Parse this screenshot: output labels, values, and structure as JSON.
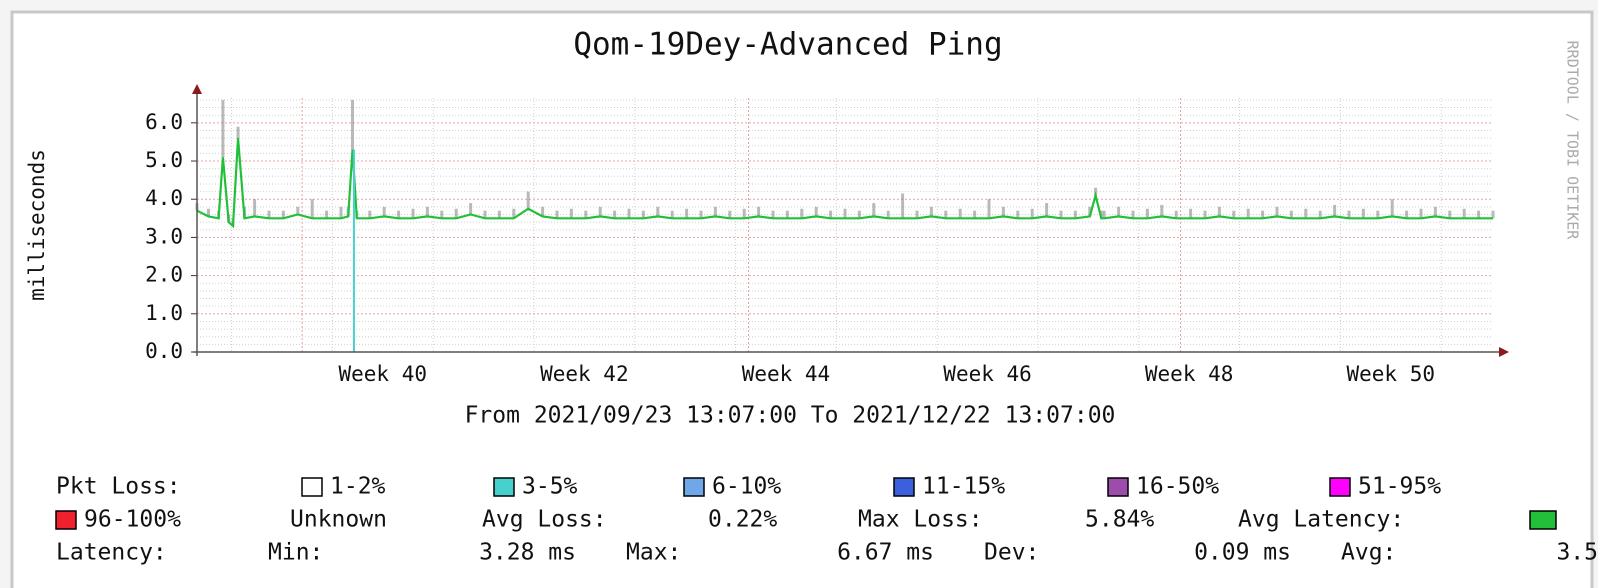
{
  "chart_data": {
    "type": "line",
    "title": "Qom-19Dey-Advanced Ping",
    "y_label": "milliseconds",
    "x_caption": "From 2021/09/23 13:07:00 To 2021/12/22 13:07:00",
    "watermark": "RRDTOOL / TOBI OETIKER",
    "xlim": [
      0,
      90
    ],
    "ylim": [
      0,
      6.65
    ],
    "xticks": [
      {
        "value": 12.9,
        "label": "Week 40"
      },
      {
        "value": 26.9,
        "label": "Week 42"
      },
      {
        "value": 40.9,
        "label": "Week 44"
      },
      {
        "value": 54.9,
        "label": "Week 46"
      },
      {
        "value": 68.9,
        "label": "Week 48"
      },
      {
        "value": 82.9,
        "label": "Week 50"
      }
    ],
    "xmajorgrid": [
      7.3,
      38.3,
      68.3
    ],
    "xminorgrid": [
      2.4,
      9.4,
      16.4,
      23.4,
      30.4,
      37.4,
      44.4,
      51.4,
      58.4,
      65.4,
      72.4,
      79.4,
      86.4
    ],
    "yticks": [
      {
        "value": 0,
        "label": "0.0"
      },
      {
        "value": 1,
        "label": "1.0"
      },
      {
        "value": 2,
        "label": "2.0"
      },
      {
        "value": 3,
        "label": "3.0"
      },
      {
        "value": 4,
        "label": "4.0"
      },
      {
        "value": 5,
        "label": "5.0"
      },
      {
        "value": 6,
        "label": "6.0"
      }
    ],
    "yminorgrid": [
      0.2,
      0.4,
      0.6,
      0.8,
      1.2,
      1.4,
      1.6,
      1.8,
      2.2,
      2.4,
      2.6,
      2.8,
      3.2,
      3.4,
      3.6,
      3.8,
      4.2,
      4.4,
      4.6,
      4.8,
      5.2,
      5.4,
      5.6,
      5.8,
      6.2,
      6.4,
      6.6
    ],
    "grid": true,
    "x": [
      0,
      0.8,
      1.5,
      1.8,
      2.2,
      2.5,
      2.85,
      3.3,
      4,
      5,
      6,
      7,
      8,
      9,
      10,
      10.5,
      10.8,
      11.1,
      12,
      13,
      14,
      15,
      16,
      17,
      18,
      19,
      20,
      21,
      22,
      23,
      24,
      25,
      26,
      27,
      28,
      29,
      30,
      31,
      32,
      33,
      34,
      35,
      36,
      37,
      38,
      39,
      40,
      41,
      42,
      43,
      44,
      45,
      46,
      47,
      48,
      49,
      50,
      51,
      52,
      53,
      54,
      55,
      56,
      57,
      58,
      59,
      60,
      61,
      62,
      62.4,
      62.8,
      63,
      64,
      65,
      66,
      67,
      68,
      69,
      70,
      71,
      72,
      73,
      74,
      75,
      76,
      77,
      78,
      79,
      80,
      81,
      82,
      83,
      84,
      85,
      86,
      87,
      88,
      89,
      90
    ],
    "series": [
      {
        "color": "#22c03a",
        "values": [
          3.7,
          3.55,
          3.5,
          5.1,
          3.4,
          3.3,
          5.6,
          3.5,
          3.55,
          3.5,
          3.5,
          3.6,
          3.5,
          3.5,
          3.5,
          3.55,
          5.3,
          3.5,
          3.5,
          3.55,
          3.5,
          3.5,
          3.55,
          3.5,
          3.5,
          3.6,
          3.5,
          3.5,
          3.5,
          3.75,
          3.55,
          3.5,
          3.5,
          3.5,
          3.55,
          3.5,
          3.5,
          3.5,
          3.55,
          3.5,
          3.5,
          3.5,
          3.55,
          3.5,
          3.5,
          3.55,
          3.5,
          3.5,
          3.5,
          3.55,
          3.5,
          3.5,
          3.5,
          3.55,
          3.5,
          3.5,
          3.5,
          3.55,
          3.5,
          3.5,
          3.5,
          3.5,
          3.55,
          3.5,
          3.5,
          3.55,
          3.5,
          3.5,
          3.55,
          4.1,
          3.5,
          3.5,
          3.55,
          3.5,
          3.5,
          3.55,
          3.5,
          3.5,
          3.5,
          3.55,
          3.5,
          3.5,
          3.5,
          3.55,
          3.5,
          3.5,
          3.5,
          3.55,
          3.5,
          3.5,
          3.5,
          3.55,
          3.5,
          3.5,
          3.55,
          3.5,
          3.5,
          3.5,
          3.5
        ]
      },
      {
        "color": "#8a8a8a",
        "values": [
          3.9,
          3.75,
          3.7,
          6.6,
          3.6,
          3.5,
          5.9,
          3.8,
          4.0,
          3.7,
          3.7,
          3.8,
          4.0,
          3.7,
          3.8,
          3.8,
          6.6,
          3.7,
          3.7,
          3.8,
          3.7,
          3.75,
          3.8,
          3.7,
          3.75,
          3.9,
          3.7,
          3.7,
          3.75,
          4.2,
          3.8,
          3.7,
          3.75,
          3.7,
          3.8,
          3.7,
          3.75,
          3.7,
          3.8,
          3.7,
          3.75,
          3.7,
          3.8,
          3.7,
          3.75,
          3.8,
          3.7,
          3.7,
          3.75,
          3.8,
          3.7,
          3.75,
          3.7,
          3.9,
          3.7,
          4.15,
          3.7,
          3.8,
          3.7,
          3.75,
          3.7,
          4.0,
          3.8,
          3.7,
          3.75,
          3.9,
          3.7,
          3.7,
          3.8,
          4.3,
          3.7,
          3.7,
          3.8,
          3.7,
          3.75,
          3.85,
          3.7,
          3.75,
          3.7,
          3.8,
          3.7,
          3.75,
          3.7,
          3.8,
          3.7,
          3.75,
          3.7,
          3.85,
          3.7,
          3.75,
          3.7,
          4.0,
          3.7,
          3.75,
          3.8,
          3.7,
          3.75,
          3.7,
          3.7
        ]
      }
    ],
    "loss_marks": {
      "color": "#48d1cc",
      "x": [
        10.9
      ],
      "values": [
        5.3
      ]
    },
    "legend": {
      "loss_label": "Pkt Loss:",
      "loss_items": [
        {
          "name": "1-2%",
          "color": "#ffffff"
        },
        {
          "name": "3-5%",
          "color": "#48d1cc"
        },
        {
          "name": "6-10%",
          "color": "#6ea8e8"
        },
        {
          "name": "11-15%",
          "color": "#3c5fdc"
        },
        {
          "name": "16-50%",
          "color": "#9c4caa"
        },
        {
          "name": "51-95%",
          "color": "#ff00ff"
        },
        {
          "name": "96-100%",
          "color": "#f0202c"
        }
      ],
      "unknown": "Unknown",
      "avg_loss_label": "Avg Loss:",
      "avg_loss": "0.22%",
      "max_loss_label": "Max Loss:",
      "max_loss": "5.84%",
      "avg_latency_label": "Avg Latency:",
      "latency_label": "Latency:",
      "min_label": "Min:",
      "min": "3.28 ms",
      "max_label": "Max:",
      "max": "6.67 ms",
      "dev_label": "Dev:",
      "dev": "0.09 ms",
      "avg_label": "Avg:",
      "avg": "3.5"
    }
  }
}
